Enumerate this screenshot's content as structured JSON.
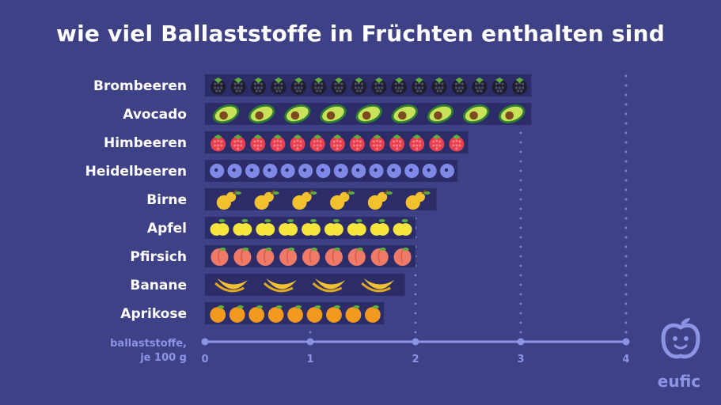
{
  "title": "wie viel Ballaststoffe in Früchten enthalten sind",
  "logo": {
    "text": "eufic"
  },
  "colors": {
    "background": "#3f4187",
    "bar": "#2b2c68",
    "axis": "#8d94e6",
    "label": "#ffffff"
  },
  "chart_data": {
    "type": "bar",
    "orientation": "horizontal",
    "title": "wie viel Ballaststoffe in Früchten enthalten sind",
    "xlabel": [
      "ballaststoffe,",
      "je 100 g"
    ],
    "xlim": [
      0,
      4
    ],
    "xticks": [
      "0",
      "1",
      "2",
      "3",
      "4"
    ],
    "grid": true,
    "categories": [
      "Brombeeren",
      "Avocado",
      "Himbeeren",
      "Heidelbeeren",
      "Birne",
      "Apfel",
      "Pfirsich",
      "Banane",
      "Aprikose"
    ],
    "values": [
      3.1,
      3.1,
      2.5,
      2.4,
      2.2,
      2.0,
      2.0,
      1.9,
      1.7
    ],
    "icons": [
      "blackberry-icon",
      "avocado-icon",
      "raspberry-icon",
      "blueberry-icon",
      "pear-icon",
      "apple-icon",
      "peach-icon",
      "banana-icon",
      "apricot-icon"
    ],
    "icon_counts": [
      16,
      9,
      13,
      14,
      6,
      9,
      9,
      4,
      9
    ]
  }
}
